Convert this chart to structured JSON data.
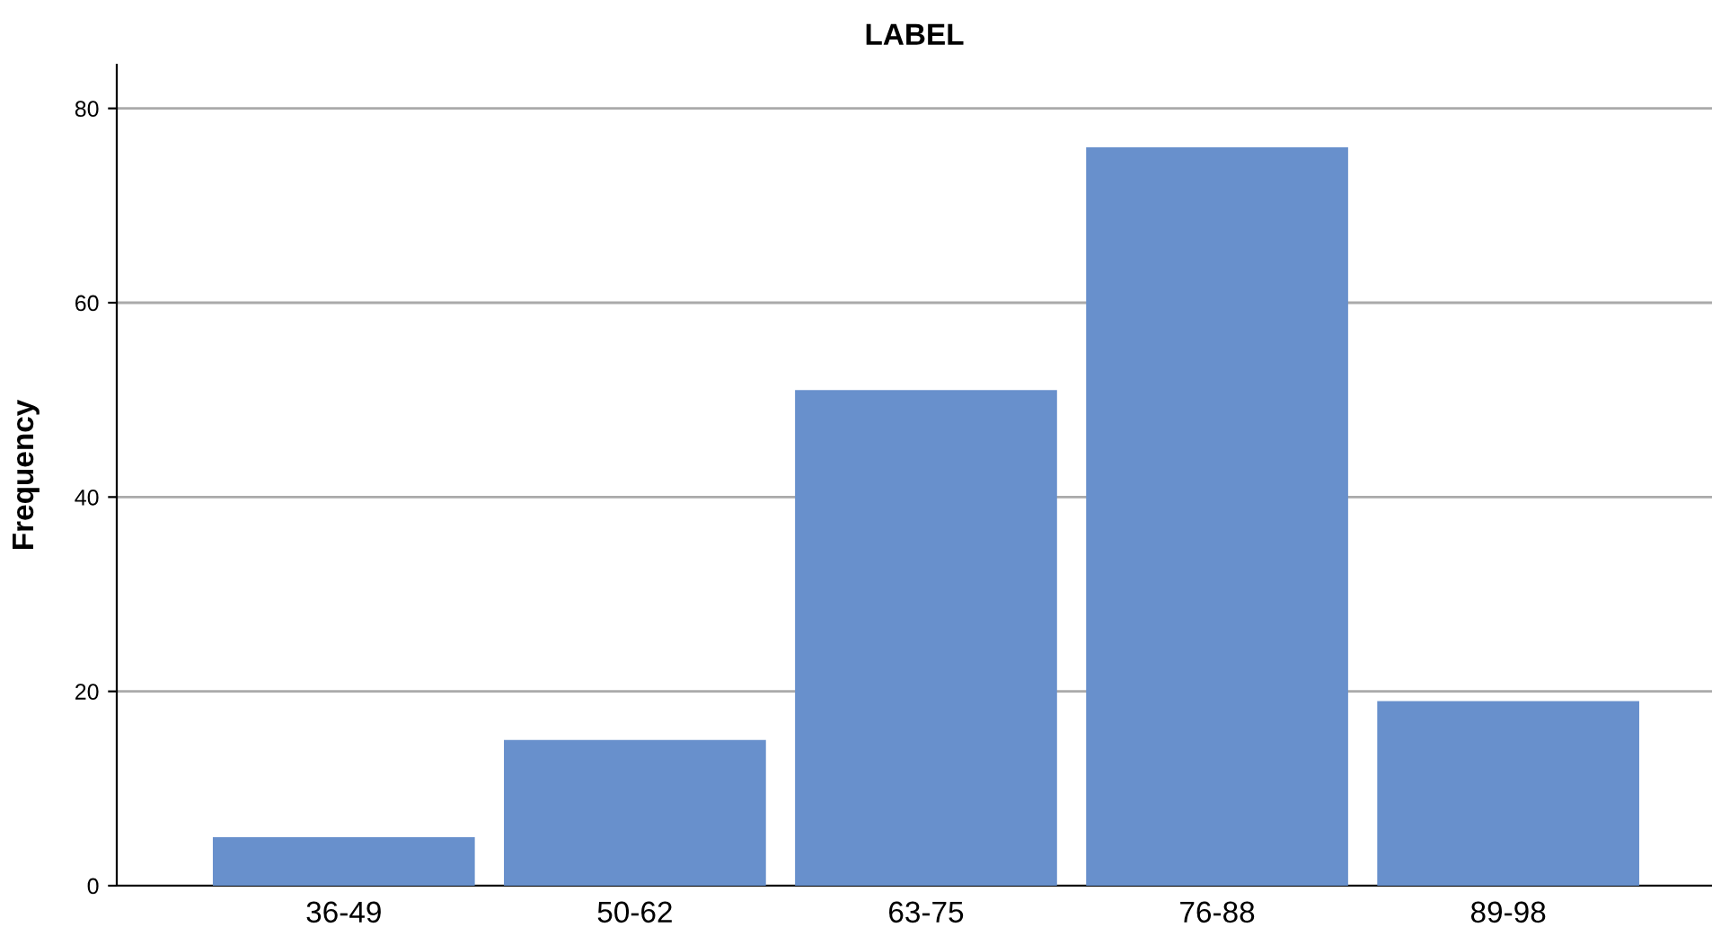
{
  "chart_data": {
    "type": "bar",
    "title": "LABEL",
    "ylabel": "Frequency",
    "categories": [
      "36-49",
      "50-62",
      "63-75",
      "76-88",
      "89-98"
    ],
    "values": [
      5,
      15,
      51,
      76,
      19
    ],
    "color": "#6890cc",
    "ylim": [
      0,
      84.5
    ],
    "yticks": [
      0,
      20,
      40,
      60,
      80
    ],
    "grid": "y"
  }
}
